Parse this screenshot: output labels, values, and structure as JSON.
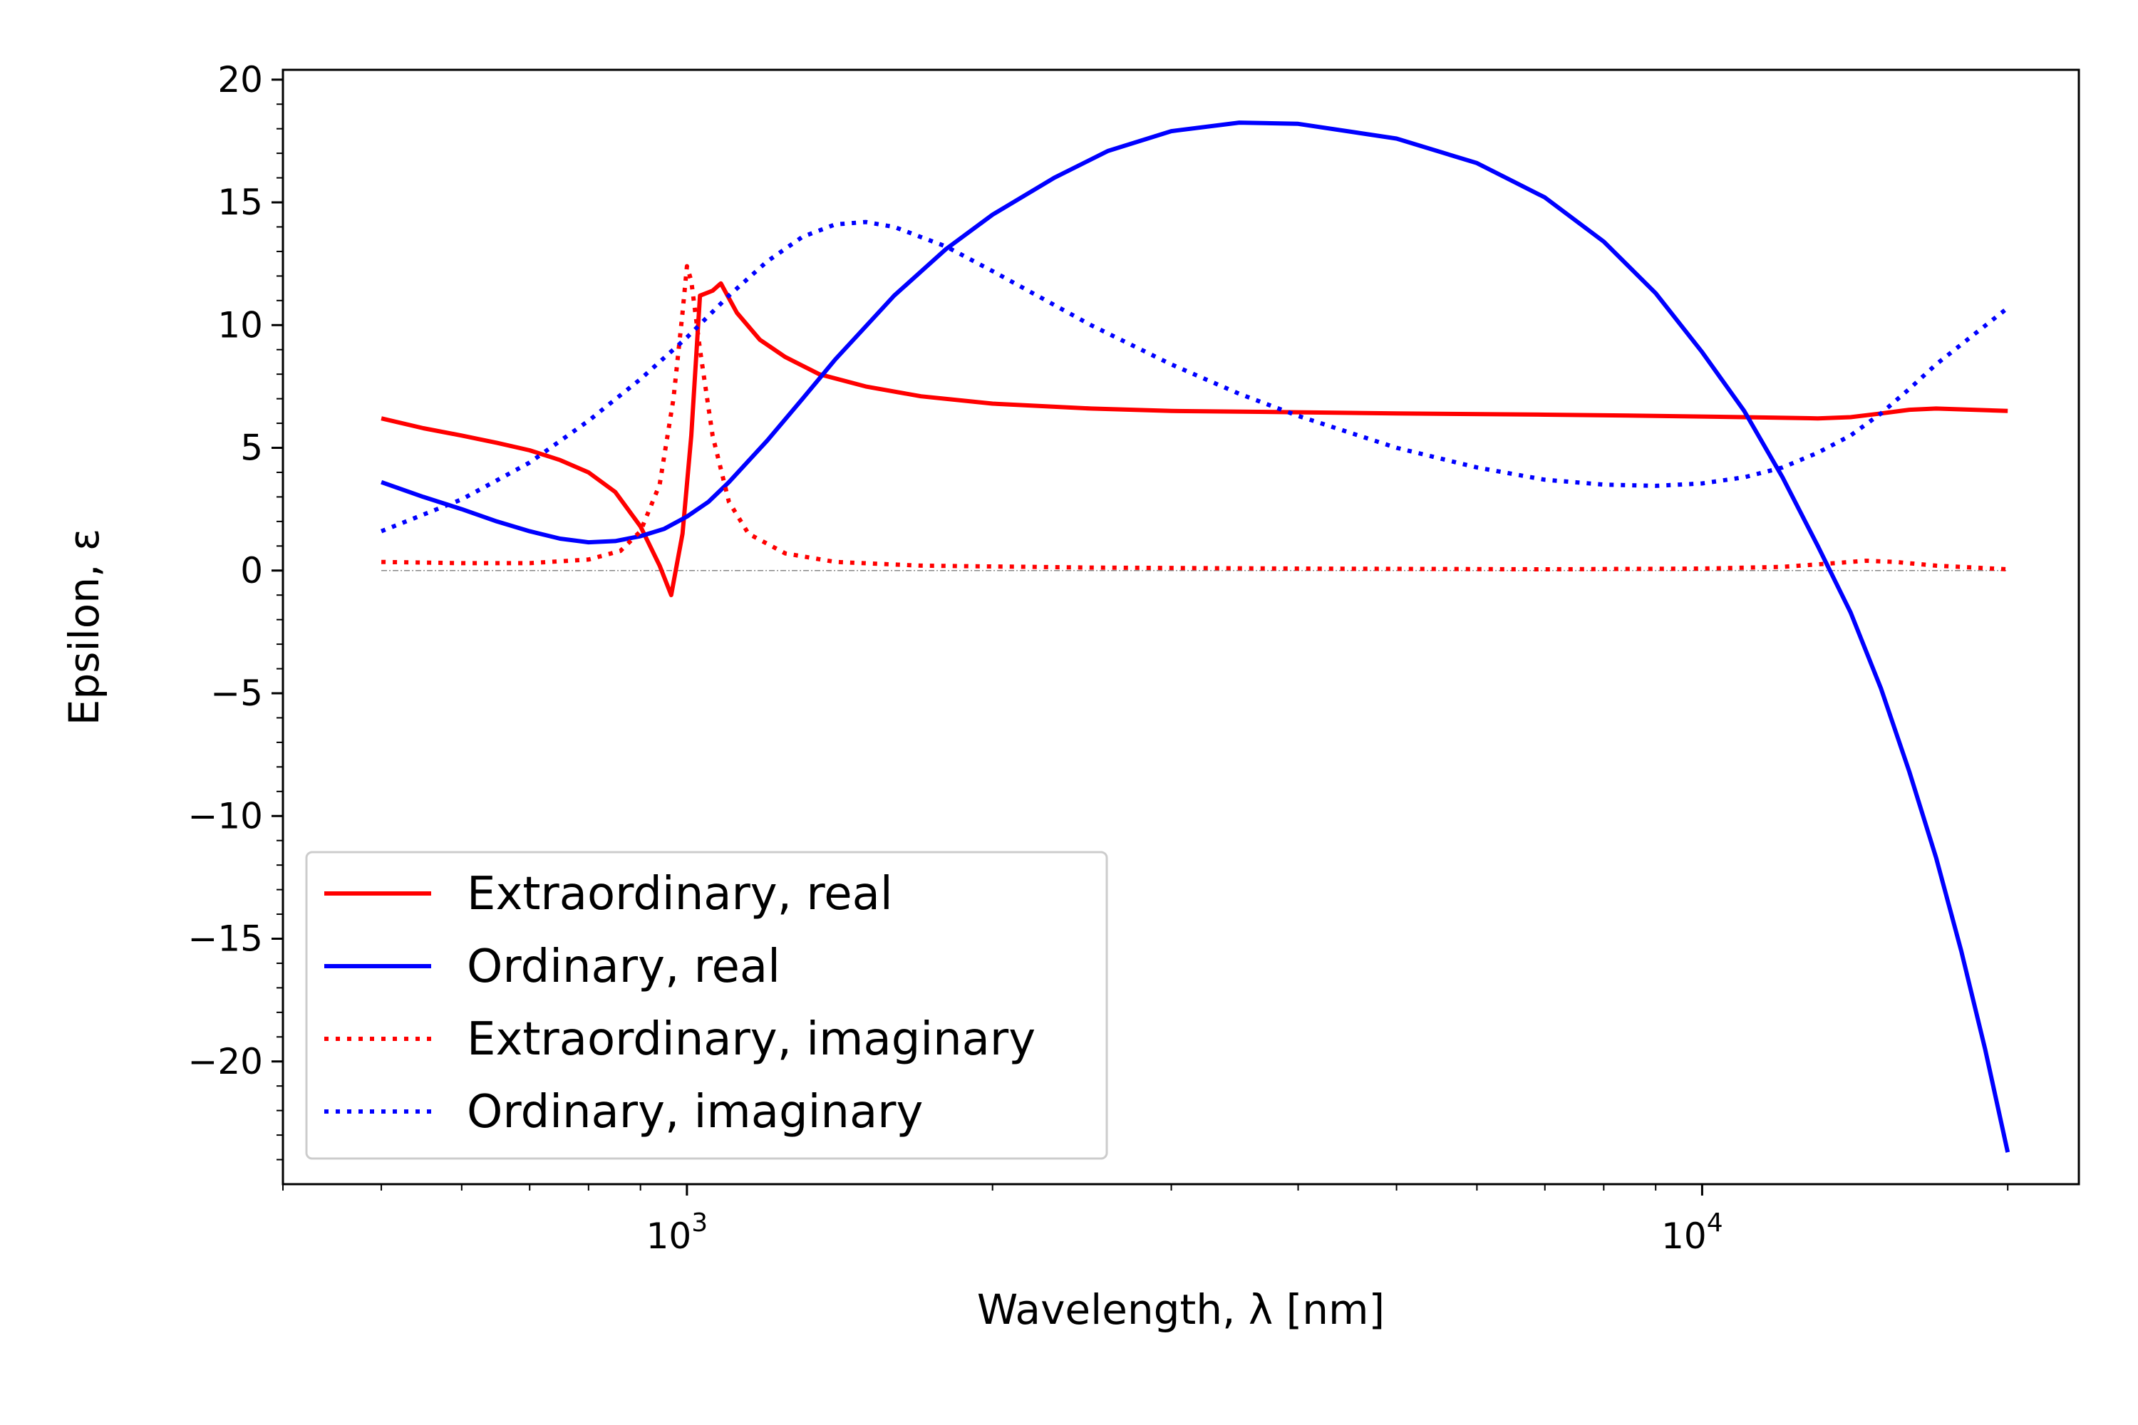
{
  "chart_data": {
    "type": "line",
    "xlabel": "Wavelength, λ [nm]",
    "ylabel": "Epsilon, ε",
    "xscale": "log",
    "xlim": [
      400,
      23500
    ],
    "ylim": [
      -25,
      20.4
    ],
    "xticks_major": [
      {
        "value": 1000,
        "base": "10",
        "exp": "3"
      },
      {
        "value": 10000,
        "base": "10",
        "exp": "4"
      }
    ],
    "yticks": [
      {
        "value": 20,
        "label": "20"
      },
      {
        "value": 15,
        "label": "15"
      },
      {
        "value": 10,
        "label": "10"
      },
      {
        "value": 5,
        "label": "5"
      },
      {
        "value": 0,
        "label": "0"
      },
      {
        "value": -5,
        "label": "−5"
      },
      {
        "value": -10,
        "label": "−10"
      },
      {
        "value": -15,
        "label": "−15"
      },
      {
        "value": -20,
        "label": "−20"
      }
    ],
    "legend_position": "lower-left",
    "reference_line": {
      "y": 0,
      "x_from": 500,
      "x_to": 20000,
      "color": "#888888"
    },
    "series": [
      {
        "name": "Extraordinary, real",
        "color": "#ff0000",
        "style": "solid",
        "points": [
          [
            500,
            6.2
          ],
          [
            550,
            5.8
          ],
          [
            600,
            5.5
          ],
          [
            650,
            5.2
          ],
          [
            700,
            4.9
          ],
          [
            750,
            4.5
          ],
          [
            800,
            4.0
          ],
          [
            850,
            3.2
          ],
          [
            900,
            1.8
          ],
          [
            940,
            0.2
          ],
          [
            965,
            -1.0
          ],
          [
            990,
            1.5
          ],
          [
            1010,
            5.5
          ],
          [
            1030,
            11.2
          ],
          [
            1060,
            11.4
          ],
          [
            1080,
            11.7
          ],
          [
            1120,
            10.5
          ],
          [
            1180,
            9.4
          ],
          [
            1250,
            8.7
          ],
          [
            1350,
            8.0
          ],
          [
            1500,
            7.5
          ],
          [
            1700,
            7.1
          ],
          [
            2000,
            6.8
          ],
          [
            2500,
            6.6
          ],
          [
            3000,
            6.5
          ],
          [
            4000,
            6.45
          ],
          [
            5000,
            6.4
          ],
          [
            7000,
            6.35
          ],
          [
            9000,
            6.3
          ],
          [
            11000,
            6.25
          ],
          [
            13000,
            6.2
          ],
          [
            14000,
            6.25
          ],
          [
            15000,
            6.4
          ],
          [
            16000,
            6.55
          ],
          [
            17000,
            6.6
          ],
          [
            18500,
            6.55
          ],
          [
            20000,
            6.5
          ]
        ]
      },
      {
        "name": "Ordinary, real",
        "color": "#0000ff",
        "style": "solid",
        "points": [
          [
            500,
            3.6
          ],
          [
            550,
            3.0
          ],
          [
            600,
            2.5
          ],
          [
            650,
            2.0
          ],
          [
            700,
            1.6
          ],
          [
            750,
            1.3
          ],
          [
            800,
            1.15
          ],
          [
            850,
            1.2
          ],
          [
            900,
            1.4
          ],
          [
            950,
            1.7
          ],
          [
            1000,
            2.2
          ],
          [
            1050,
            2.8
          ],
          [
            1100,
            3.6
          ],
          [
            1200,
            5.3
          ],
          [
            1300,
            7.0
          ],
          [
            1400,
            8.6
          ],
          [
            1600,
            11.2
          ],
          [
            1800,
            13.1
          ],
          [
            2000,
            14.5
          ],
          [
            2300,
            16.0
          ],
          [
            2600,
            17.1
          ],
          [
            3000,
            17.9
          ],
          [
            3500,
            18.25
          ],
          [
            4000,
            18.2
          ],
          [
            5000,
            17.6
          ],
          [
            6000,
            16.6
          ],
          [
            7000,
            15.2
          ],
          [
            8000,
            13.4
          ],
          [
            9000,
            11.3
          ],
          [
            10000,
            8.9
          ],
          [
            11000,
            6.5
          ],
          [
            12000,
            3.8
          ],
          [
            13000,
            1.0
          ],
          [
            14000,
            -1.7
          ],
          [
            15000,
            -4.8
          ],
          [
            16000,
            -8.2
          ],
          [
            17000,
            -11.7
          ],
          [
            18000,
            -15.5
          ],
          [
            19000,
            -19.5
          ],
          [
            20000,
            -23.7
          ]
        ]
      },
      {
        "name": "Extraordinary, imaginary",
        "color": "#ff0000",
        "style": "dotted",
        "points": [
          [
            500,
            0.35
          ],
          [
            600,
            0.3
          ],
          [
            700,
            0.3
          ],
          [
            800,
            0.45
          ],
          [
            860,
            0.8
          ],
          [
            900,
            1.6
          ],
          [
            940,
            3.5
          ],
          [
            970,
            7.0
          ],
          [
            990,
            10.5
          ],
          [
            1000,
            12.4
          ],
          [
            1010,
            11.8
          ],
          [
            1030,
            9.0
          ],
          [
            1060,
            5.5
          ],
          [
            1100,
            2.8
          ],
          [
            1150,
            1.5
          ],
          [
            1250,
            0.7
          ],
          [
            1400,
            0.35
          ],
          [
            1700,
            0.2
          ],
          [
            2500,
            0.12
          ],
          [
            4000,
            0.08
          ],
          [
            7000,
            0.05
          ],
          [
            10000,
            0.08
          ],
          [
            12000,
            0.15
          ],
          [
            13500,
            0.3
          ],
          [
            14500,
            0.4
          ],
          [
            15500,
            0.35
          ],
          [
            17000,
            0.2
          ],
          [
            20000,
            0.05
          ]
        ]
      },
      {
        "name": "Ordinary, imaginary",
        "color": "#0000ff",
        "style": "dotted",
        "points": [
          [
            500,
            1.6
          ],
          [
            600,
            2.9
          ],
          [
            700,
            4.4
          ],
          [
            800,
            6.1
          ],
          [
            900,
            7.8
          ],
          [
            1000,
            9.5
          ],
          [
            1100,
            11.2
          ],
          [
            1200,
            12.6
          ],
          [
            1300,
            13.6
          ],
          [
            1400,
            14.1
          ],
          [
            1500,
            14.2
          ],
          [
            1600,
            14.0
          ],
          [
            1800,
            13.2
          ],
          [
            2000,
            12.2
          ],
          [
            2500,
            10.0
          ],
          [
            3000,
            8.4
          ],
          [
            3500,
            7.2
          ],
          [
            4000,
            6.3
          ],
          [
            5000,
            5.0
          ],
          [
            6000,
            4.2
          ],
          [
            7000,
            3.7
          ],
          [
            8000,
            3.5
          ],
          [
            9000,
            3.45
          ],
          [
            10000,
            3.55
          ],
          [
            11000,
            3.8
          ],
          [
            12000,
            4.2
          ],
          [
            13000,
            4.8
          ],
          [
            14000,
            5.5
          ],
          [
            15000,
            6.4
          ],
          [
            16000,
            7.4
          ],
          [
            17000,
            8.4
          ],
          [
            18500,
            9.6
          ],
          [
            20000,
            10.7
          ]
        ]
      }
    ]
  }
}
